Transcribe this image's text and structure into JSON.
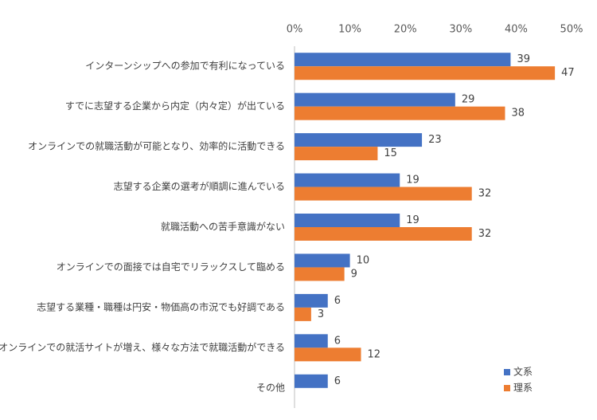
{
  "chart_data": {
    "type": "bar",
    "orientation": "horizontal",
    "categories": [
      "インターンシップへの参加で有利になっている",
      "すでに志望する企業から内定（内々定）が出ている",
      "オンラインでの就職活動が可能となり、効率的に活動できる",
      "志望する企業の選考が順調に進んでいる",
      "就職活動への苦手意識がない",
      "オンラインでの面接では自宅でリラックスして臨める",
      "志望する業種・職種は円安・物価高の市況でも好調である",
      "オンラインでの就活サイトが増え、様々な方法で就職活動ができる",
      "その他"
    ],
    "series": [
      {
        "name": "文系",
        "color": "#4472c4",
        "values": [
          39,
          29,
          23,
          19,
          19,
          10,
          6,
          6,
          6
        ]
      },
      {
        "name": "理系",
        "color": "#ed7d31",
        "values": [
          47,
          38,
          15,
          32,
          32,
          9,
          3,
          12,
          null
        ]
      }
    ],
    "xlim": [
      0,
      50
    ],
    "xticks": [
      {
        "value": 0,
        "label": "0%"
      },
      {
        "value": 10,
        "label": "10%"
      },
      {
        "value": 20,
        "label": "20%"
      },
      {
        "value": 30,
        "label": "30%"
      },
      {
        "value": 40,
        "label": "40%"
      },
      {
        "value": 50,
        "label": "50%"
      }
    ],
    "grid": false,
    "legend": "bottom-right"
  }
}
